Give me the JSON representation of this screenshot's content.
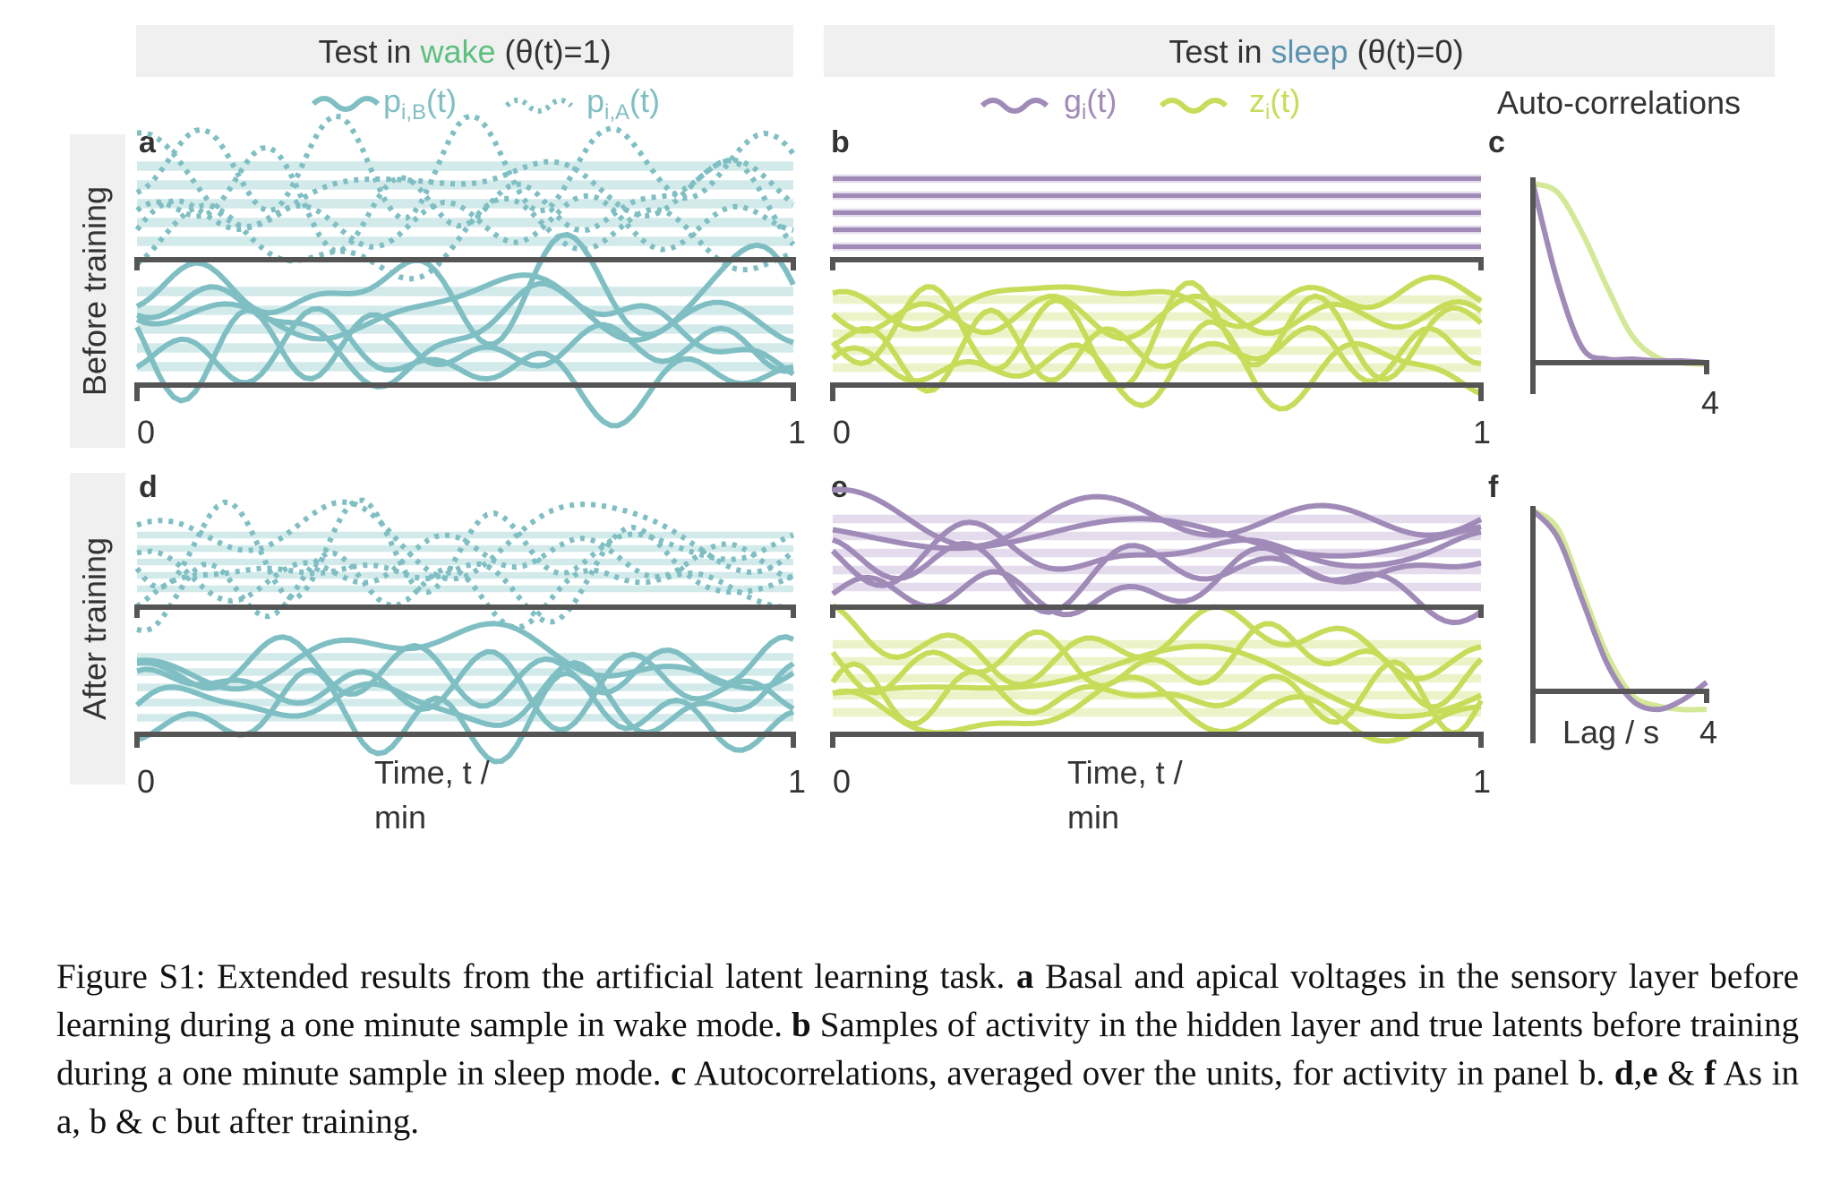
{
  "figure": {
    "headers": {
      "wake": {
        "prefix": "Test in ",
        "keyword": "wake",
        "suffix": " (θ(t)=1)"
      },
      "sleep": {
        "prefix": "Test in ",
        "keyword": "sleep",
        "suffix": " (θ(t)=0)"
      }
    },
    "legends": {
      "basal": {
        "base": "p",
        "sub": "i,B",
        "tail": "(t)"
      },
      "apical": {
        "base": "p",
        "sub": "i,A",
        "tail": "(t)"
      },
      "hidden": {
        "base": "g",
        "sub": "i",
        "tail": "(t)"
      },
      "latent": {
        "base": "z",
        "sub": "i",
        "tail": "(t)"
      },
      "autocorr_title": "Auto-correlations"
    },
    "row_labels": {
      "before": "Before training",
      "after": "After training"
    },
    "panel_letters": {
      "a": "a",
      "b": "b",
      "c": "c",
      "d": "d",
      "e": "e",
      "f": "f"
    },
    "axes": {
      "time_start": "0",
      "time_end": "1",
      "time_label_line1": "Time, t /",
      "time_label_line2": "min",
      "lag_end": "4",
      "lag_label": "Lag / s"
    },
    "colors": {
      "teal": "#7fbfc3",
      "teal_band": "#d3eaeb",
      "purple": "#a08bb8",
      "purple_band": "#e4dcec",
      "lime": "#c8dc5a",
      "lime_band": "#ecf3c8",
      "lime_light": "#d4e898",
      "wake_word": "#5cc07f",
      "sleep_word": "#5a93b0",
      "axis": "#555555",
      "header_bg": "#f0f0f0"
    },
    "chart_data": [
      {
        "panel": "a",
        "type": "line",
        "description_key": "sensory basal and apical voltages, wake, before training",
        "x_range": [
          0,
          1
        ],
        "series_count": {
          "apical_dotted": 5,
          "basal_solid": 5
        }
      },
      {
        "panel": "b",
        "type": "line",
        "description_key": "hidden activity (flat) and true latents, sleep, before training",
        "x_range": [
          0,
          1
        ],
        "series_count": {
          "hidden": 5,
          "latent": 5
        }
      },
      {
        "panel": "c",
        "type": "line",
        "x_range": [
          0,
          4
        ],
        "series": [
          {
            "key": "hidden",
            "values": [
              1.0,
              0.45,
              0.08,
              0.02,
              0.02,
              0.01,
              0.01,
              0.0
            ]
          },
          {
            "key": "latent",
            "values": [
              1.0,
              0.95,
              0.72,
              0.42,
              0.15,
              0.03,
              0.0,
              -0.01
            ]
          }
        ]
      },
      {
        "panel": "d",
        "type": "line",
        "description_key": "sensory basal and apical voltages, wake, after training",
        "x_range": [
          0,
          1
        ]
      },
      {
        "panel": "e",
        "type": "line",
        "description_key": "hidden activity and true latents, sleep, after training",
        "x_range": [
          0,
          1
        ]
      },
      {
        "panel": "f",
        "type": "line",
        "x_range": [
          0,
          4
        ],
        "series": [
          {
            "key": "hidden",
            "values": [
              1.0,
              0.85,
              0.5,
              0.15,
              -0.05,
              -0.1,
              -0.05,
              0.05
            ]
          },
          {
            "key": "latent",
            "values": [
              1.0,
              0.9,
              0.55,
              0.2,
              -0.02,
              -0.08,
              -0.1,
              -0.1
            ]
          }
        ]
      }
    ]
  },
  "caption": {
    "label": "Figure S1:",
    "intro": "  Extended results from the artificial latent learning task. ",
    "a_key": "a",
    "a_text": " Basal and apical voltages in the sensory layer before learning during a one minute sample in wake mode. ",
    "b_key": "b",
    "b_text": " Samples of activity in the hidden layer and true latents before training during a one minute sample in sleep mode. ",
    "c_key": "c",
    "c_text": " Autocorrelations, averaged over the units, for activity in panel b. ",
    "def_key_d": "d",
    "def_sep1": ",",
    "def_key_e": "e",
    "def_sep2": " & ",
    "def_key_f": "f",
    "def_text": " As in a, b & c but after training."
  }
}
